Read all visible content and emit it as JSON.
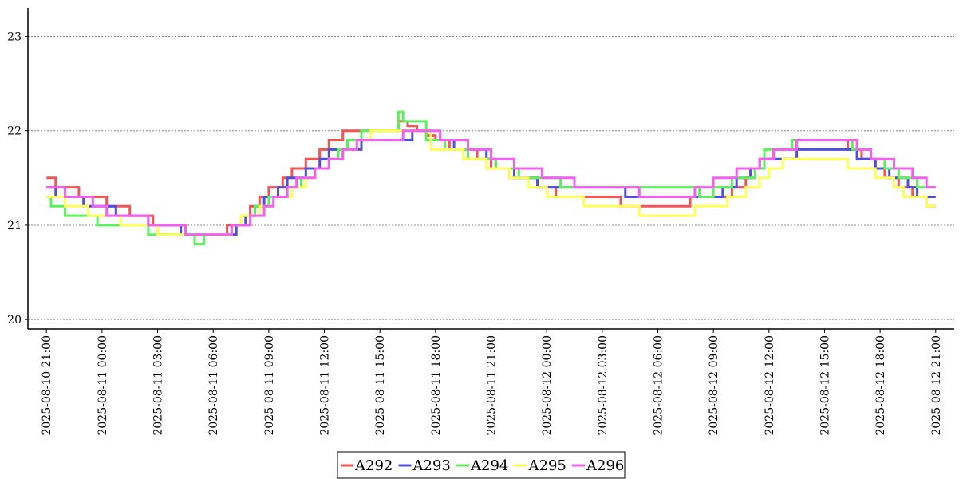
{
  "chart_data": {
    "type": "line",
    "title": "",
    "xlabel": "",
    "ylabel": "",
    "ylim": [
      19.9,
      23.3
    ],
    "xlim": [
      "2025-08-10 20:00",
      "2025-08-12 22:00"
    ],
    "yticks": [
      20,
      21,
      22,
      23
    ],
    "xticks": [
      "2025-08-10 21:00",
      "2025-08-11 00:00",
      "2025-08-11 03:00",
      "2025-08-11 06:00",
      "2025-08-11 09:00",
      "2025-08-11 12:00",
      "2025-08-11 15:00",
      "2025-08-11 18:00",
      "2025-08-11 21:00",
      "2025-08-12 00:00",
      "2025-08-12 03:00",
      "2025-08-12 06:00",
      "2025-08-12 09:00",
      "2025-08-12 12:00",
      "2025-08-12 15:00",
      "2025-08-12 18:00",
      "2025-08-12 21:00"
    ],
    "grid": "y-dotted",
    "legend_position": "bottom-center",
    "series": [
      {
        "name": "A292",
        "color": "#f45454",
        "points": [
          [
            "2025-08-10 21:00",
            21.5
          ],
          [
            "2025-08-10 21:30",
            21.4
          ],
          [
            "2025-08-10 22:45",
            21.3
          ],
          [
            "2025-08-11 00:15",
            21.2
          ],
          [
            "2025-08-11 01:30",
            21.1
          ],
          [
            "2025-08-11 02:45",
            21.0
          ],
          [
            "2025-08-11 04:30",
            20.9
          ],
          [
            "2025-08-11 06:45",
            21.0
          ],
          [
            "2025-08-11 07:30",
            21.1
          ],
          [
            "2025-08-11 08:00",
            21.2
          ],
          [
            "2025-08-11 08:30",
            21.3
          ],
          [
            "2025-08-11 09:00",
            21.4
          ],
          [
            "2025-08-11 09:45",
            21.5
          ],
          [
            "2025-08-11 10:15",
            21.6
          ],
          [
            "2025-08-11 11:00",
            21.7
          ],
          [
            "2025-08-11 11:45",
            21.8
          ],
          [
            "2025-08-11 12:15",
            21.9
          ],
          [
            "2025-08-11 13:00",
            22.0
          ],
          [
            "2025-08-11 16:00",
            22.1
          ],
          [
            "2025-08-11 16:30",
            22.05
          ],
          [
            "2025-08-11 17:00",
            22.0
          ],
          [
            "2025-08-11 17:30",
            21.95
          ],
          [
            "2025-08-11 18:00",
            21.9
          ],
          [
            "2025-08-11 18:45",
            21.8
          ],
          [
            "2025-08-11 20:15",
            21.7
          ],
          [
            "2025-08-11 21:00",
            21.6
          ],
          [
            "2025-08-11 22:00",
            21.5
          ],
          [
            "2025-08-11 23:30",
            21.4
          ],
          [
            "2025-08-12 00:30",
            21.3
          ],
          [
            "2025-08-12 04:00",
            21.2
          ],
          [
            "2025-08-12 07:45",
            21.3
          ],
          [
            "2025-08-12 10:00",
            21.4
          ],
          [
            "2025-08-12 10:45",
            21.5
          ],
          [
            "2025-08-12 11:15",
            21.6
          ],
          [
            "2025-08-12 11:45",
            21.7
          ],
          [
            "2025-08-12 12:15",
            21.8
          ],
          [
            "2025-08-12 13:30",
            21.9
          ],
          [
            "2025-08-12 16:15",
            21.8
          ],
          [
            "2025-08-12 17:00",
            21.7
          ],
          [
            "2025-08-12 17:45",
            21.6
          ],
          [
            "2025-08-12 18:15",
            21.5
          ],
          [
            "2025-08-12 19:00",
            21.4
          ],
          [
            "2025-08-12 19:45",
            21.3
          ],
          [
            "2025-08-12 20:30",
            21.2
          ],
          [
            "2025-08-12 21:00",
            21.2
          ]
        ]
      },
      {
        "name": "A293",
        "color": "#4f4fde",
        "points": [
          [
            "2025-08-10 21:00",
            21.4
          ],
          [
            "2025-08-10 21:30",
            21.3
          ],
          [
            "2025-08-10 23:00",
            21.2
          ],
          [
            "2025-08-11 00:45",
            21.1
          ],
          [
            "2025-08-11 02:30",
            21.0
          ],
          [
            "2025-08-11 04:15",
            20.9
          ],
          [
            "2025-08-11 07:15",
            21.0
          ],
          [
            "2025-08-11 07:45",
            21.1
          ],
          [
            "2025-08-11 08:15",
            21.2
          ],
          [
            "2025-08-11 08:45",
            21.3
          ],
          [
            "2025-08-11 09:30",
            21.4
          ],
          [
            "2025-08-11 10:00",
            21.5
          ],
          [
            "2025-08-11 11:00",
            21.6
          ],
          [
            "2025-08-11 11:45",
            21.7
          ],
          [
            "2025-08-11 12:15",
            21.8
          ],
          [
            "2025-08-11 14:00",
            21.9
          ],
          [
            "2025-08-11 16:45",
            22.0
          ],
          [
            "2025-08-11 17:45",
            21.9
          ],
          [
            "2025-08-11 19:00",
            21.8
          ],
          [
            "2025-08-11 20:45",
            21.7
          ],
          [
            "2025-08-11 21:15",
            21.6
          ],
          [
            "2025-08-11 22:15",
            21.5
          ],
          [
            "2025-08-11 23:30",
            21.4
          ],
          [
            "2025-08-12 04:15",
            21.3
          ],
          [
            "2025-08-12 08:00",
            21.3
          ],
          [
            "2025-08-12 09:30",
            21.4
          ],
          [
            "2025-08-12 10:15",
            21.5
          ],
          [
            "2025-08-12 11:00",
            21.6
          ],
          [
            "2025-08-12 11:30",
            21.7
          ],
          [
            "2025-08-12 13:30",
            21.8
          ],
          [
            "2025-08-12 16:45",
            21.7
          ],
          [
            "2025-08-12 17:45",
            21.6
          ],
          [
            "2025-08-12 18:30",
            21.5
          ],
          [
            "2025-08-12 19:30",
            21.4
          ],
          [
            "2025-08-12 20:00",
            21.3
          ],
          [
            "2025-08-12 21:00",
            21.3
          ]
        ]
      },
      {
        "name": "A294",
        "color": "#5cf05c",
        "points": [
          [
            "2025-08-10 21:00",
            21.3
          ],
          [
            "2025-08-10 21:15",
            21.2
          ],
          [
            "2025-08-10 22:00",
            21.1
          ],
          [
            "2025-08-10 23:45",
            21.0
          ],
          [
            "2025-08-11 02:30",
            20.9
          ],
          [
            "2025-08-11 05:00",
            20.8
          ],
          [
            "2025-08-11 05:30",
            20.9
          ],
          [
            "2025-08-11 07:00",
            21.0
          ],
          [
            "2025-08-11 07:30",
            21.1
          ],
          [
            "2025-08-11 08:15",
            21.2
          ],
          [
            "2025-08-11 09:00",
            21.3
          ],
          [
            "2025-08-11 10:00",
            21.4
          ],
          [
            "2025-08-11 10:45",
            21.5
          ],
          [
            "2025-08-11 11:30",
            21.6
          ],
          [
            "2025-08-11 12:15",
            21.7
          ],
          [
            "2025-08-11 12:45",
            21.8
          ],
          [
            "2025-08-11 13:15",
            21.9
          ],
          [
            "2025-08-11 14:00",
            22.0
          ],
          [
            "2025-08-11 16:00",
            22.2
          ],
          [
            "2025-08-11 16:15",
            22.1
          ],
          [
            "2025-08-11 17:30",
            21.9
          ],
          [
            "2025-08-11 18:30",
            21.8
          ],
          [
            "2025-08-11 19:45",
            21.7
          ],
          [
            "2025-08-11 21:15",
            21.6
          ],
          [
            "2025-08-11 22:30",
            21.5
          ],
          [
            "2025-08-12 00:45",
            21.4
          ],
          [
            "2025-08-12 08:15",
            21.3
          ],
          [
            "2025-08-12 09:00",
            21.4
          ],
          [
            "2025-08-12 10:00",
            21.5
          ],
          [
            "2025-08-12 11:15",
            21.6
          ],
          [
            "2025-08-12 11:45",
            21.8
          ],
          [
            "2025-08-12 13:15",
            21.9
          ],
          [
            "2025-08-12 16:30",
            21.8
          ],
          [
            "2025-08-12 17:30",
            21.7
          ],
          [
            "2025-08-12 18:15",
            21.6
          ],
          [
            "2025-08-12 19:00",
            21.5
          ],
          [
            "2025-08-12 20:00",
            21.4
          ],
          [
            "2025-08-12 21:00",
            21.4
          ]
        ]
      },
      {
        "name": "A295",
        "color": "#ffff5a",
        "points": [
          [
            "2025-08-10 21:00",
            21.3
          ],
          [
            "2025-08-10 22:00",
            21.2
          ],
          [
            "2025-08-10 23:15",
            21.1
          ],
          [
            "2025-08-11 01:00",
            21.0
          ],
          [
            "2025-08-11 03:00",
            20.9
          ],
          [
            "2025-08-11 07:00",
            21.0
          ],
          [
            "2025-08-11 07:30",
            21.1
          ],
          [
            "2025-08-11 08:30",
            21.2
          ],
          [
            "2025-08-11 09:15",
            21.3
          ],
          [
            "2025-08-11 10:15",
            21.4
          ],
          [
            "2025-08-11 11:00",
            21.5
          ],
          [
            "2025-08-11 11:30",
            21.6
          ],
          [
            "2025-08-11 12:15",
            21.7
          ],
          [
            "2025-08-11 13:00",
            21.8
          ],
          [
            "2025-08-11 13:45",
            21.9
          ],
          [
            "2025-08-11 14:30",
            22.0
          ],
          [
            "2025-08-11 16:00",
            22.0
          ],
          [
            "2025-08-11 17:45",
            21.8
          ],
          [
            "2025-08-11 19:30",
            21.7
          ],
          [
            "2025-08-11 20:45",
            21.6
          ],
          [
            "2025-08-11 22:00",
            21.5
          ],
          [
            "2025-08-11 23:00",
            21.4
          ],
          [
            "2025-08-12 00:00",
            21.3
          ],
          [
            "2025-08-12 02:00",
            21.2
          ],
          [
            "2025-08-12 05:00",
            21.1
          ],
          [
            "2025-08-12 08:00",
            21.2
          ],
          [
            "2025-08-12 09:45",
            21.3
          ],
          [
            "2025-08-12 10:45",
            21.4
          ],
          [
            "2025-08-12 11:30",
            21.5
          ],
          [
            "2025-08-12 12:00",
            21.6
          ],
          [
            "2025-08-12 12:45",
            21.7
          ],
          [
            "2025-08-12 15:15",
            21.7
          ],
          [
            "2025-08-12 16:15",
            21.6
          ],
          [
            "2025-08-12 17:45",
            21.5
          ],
          [
            "2025-08-12 18:45",
            21.4
          ],
          [
            "2025-08-12 19:15",
            21.3
          ],
          [
            "2025-08-12 20:30",
            21.2
          ],
          [
            "2025-08-12 21:00",
            21.2
          ]
        ]
      },
      {
        "name": "A296",
        "color": "#f35ff0",
        "points": [
          [
            "2025-08-10 21:00",
            21.4
          ],
          [
            "2025-08-10 22:00",
            21.3
          ],
          [
            "2025-08-10 23:30",
            21.2
          ],
          [
            "2025-08-11 00:15",
            21.1
          ],
          [
            "2025-08-11 02:30",
            21.0
          ],
          [
            "2025-08-11 04:30",
            20.9
          ],
          [
            "2025-08-11 07:00",
            21.0
          ],
          [
            "2025-08-11 08:00",
            21.1
          ],
          [
            "2025-08-11 08:45",
            21.2
          ],
          [
            "2025-08-11 09:15",
            21.3
          ],
          [
            "2025-08-11 10:00",
            21.4
          ],
          [
            "2025-08-11 10:30",
            21.5
          ],
          [
            "2025-08-11 11:30",
            21.6
          ],
          [
            "2025-08-11 12:15",
            21.7
          ],
          [
            "2025-08-11 13:00",
            21.8
          ],
          [
            "2025-08-11 13:45",
            21.9
          ],
          [
            "2025-08-11 16:15",
            22.0
          ],
          [
            "2025-08-11 18:15",
            21.9
          ],
          [
            "2025-08-11 19:45",
            21.8
          ],
          [
            "2025-08-11 21:00",
            21.7
          ],
          [
            "2025-08-11 22:15",
            21.6
          ],
          [
            "2025-08-11 23:45",
            21.5
          ],
          [
            "2025-08-12 01:30",
            21.4
          ],
          [
            "2025-08-12 05:00",
            21.3
          ],
          [
            "2025-08-12 08:00",
            21.4
          ],
          [
            "2025-08-12 09:00",
            21.5
          ],
          [
            "2025-08-12 10:15",
            21.6
          ],
          [
            "2025-08-12 11:30",
            21.7
          ],
          [
            "2025-08-12 12:15",
            21.8
          ],
          [
            "2025-08-12 13:30",
            21.9
          ],
          [
            "2025-08-12 16:45",
            21.8
          ],
          [
            "2025-08-12 17:30",
            21.7
          ],
          [
            "2025-08-12 18:45",
            21.6
          ],
          [
            "2025-08-12 19:45",
            21.5
          ],
          [
            "2025-08-12 20:30",
            21.4
          ],
          [
            "2025-08-12 21:00",
            21.4
          ]
        ]
      }
    ]
  }
}
